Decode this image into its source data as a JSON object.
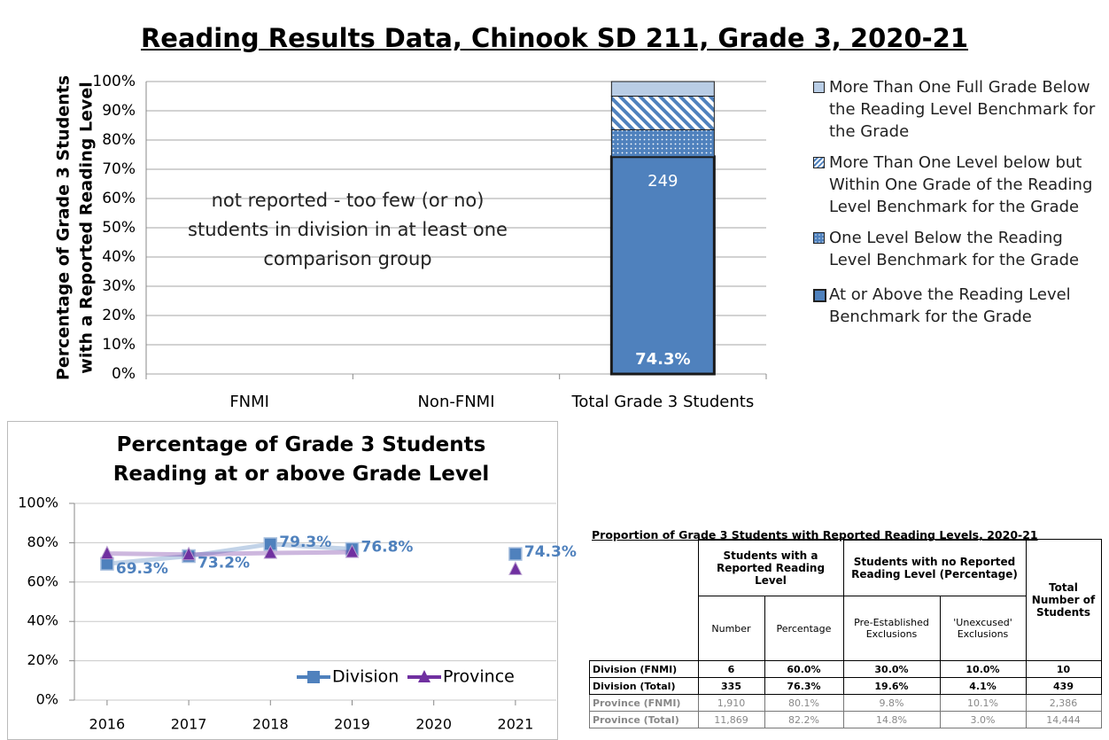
{
  "chart_data": [
    {
      "type": "stacked_bar",
      "title": "Reading Results Data, Chinook SD 211, Grade 3, 2020-21",
      "ylabel": [
        "Percentage of Grade 3 Students",
        "with a Reported Reading Level"
      ],
      "categories": [
        "FNMI",
        "Non-FNMI",
        "Total Grade 3 Students"
      ],
      "series": [
        {
          "name": "At or Above the Reading Level Benchmark for the Grade",
          "color": "#4f81bd",
          "fill_style": "solid",
          "values": [
            null,
            null,
            74.3
          ],
          "value_labels": [
            null,
            null,
            "74.3%"
          ]
        },
        {
          "name": "One Level Below the Reading Level Benchmark for the Grade",
          "color": "#4f81bd",
          "fill_style": "dots",
          "values": [
            null,
            null,
            9.2
          ]
        },
        {
          "name": "More Than One Level below but Within One Grade of the Reading Level Benchmark for the Grade",
          "color": "#4f81bd",
          "fill_style": "diagonal",
          "values": [
            null,
            null,
            11.5
          ]
        },
        {
          "name": "More Than One Full Grade Below the Reading Level Benchmark for the Grade",
          "color": "#b9cde5",
          "fill_style": "solid",
          "values": [
            null,
            null,
            5.0
          ]
        }
      ],
      "count_label": "249",
      "annotation": "not reported - too few (or no) students in division in at least one comparison group",
      "ylim": [
        0,
        100
      ],
      "yticks": [
        {
          "value": 0,
          "label": "0%"
        },
        {
          "value": 10,
          "label": "10%"
        },
        {
          "value": 20,
          "label": "20%"
        },
        {
          "value": 30,
          "label": "30%"
        },
        {
          "value": 40,
          "label": "40%"
        },
        {
          "value": 50,
          "label": "50%"
        },
        {
          "value": 60,
          "label": "60%"
        },
        {
          "value": 70,
          "label": "70%"
        },
        {
          "value": 80,
          "label": "80%"
        },
        {
          "value": 90,
          "label": "90%"
        },
        {
          "value": 100,
          "label": "100%"
        }
      ],
      "grid": true
    },
    {
      "type": "line",
      "title": "Percentage of Grade 3 Students Reading at or above Grade Level",
      "x": [
        2016,
        2017,
        2018,
        2019,
        2020,
        2021
      ],
      "xticks": [
        2016,
        2017,
        2018,
        2019,
        2020,
        2021
      ],
      "xlim": [
        2015.6,
        2021.5
      ],
      "series": [
        {
          "name": "Division",
          "color": "#4f81bd",
          "marker": "square",
          "values": [
            69.3,
            73.2,
            79.3,
            76.8,
            null,
            74.3
          ],
          "value_labels": [
            "69.3%",
            "73.2%",
            "79.3%",
            "76.8%",
            null,
            "74.3%"
          ]
        },
        {
          "name": "Province",
          "color": "#7030a0",
          "marker": "triangle",
          "values": [
            74.5,
            74.0,
            74.8,
            75.2,
            null,
            66.5
          ]
        }
      ],
      "ylim": [
        0,
        100
      ],
      "yticks": [
        {
          "value": 0,
          "label": "0%"
        },
        {
          "value": 20,
          "label": "20%"
        },
        {
          "value": 40,
          "label": "40%"
        },
        {
          "value": 60,
          "label": "60%"
        },
        {
          "value": 80,
          "label": "80%"
        },
        {
          "value": 100,
          "label": "100%"
        }
      ],
      "grid": true
    }
  ],
  "table": {
    "title": "Proportion of Grade 3 Students with Reported Reading Levels, 2020-21",
    "group_headers": [
      "Students with a Reported Reading Level",
      "Students with no Reported Reading Level (Percentage)",
      "Total Number of Students"
    ],
    "sub_headers": [
      "Number",
      "Percentage",
      "Pre-Established Exclusions",
      "'Unexcused' Exclusions"
    ],
    "rows": [
      [
        "Division (FNMI)",
        "6",
        "60.0%",
        "30.0%",
        "10.0%",
        "10"
      ],
      [
        "Division (Total)",
        "335",
        "76.3%",
        "19.6%",
        "4.1%",
        "439"
      ],
      [
        "Province (FNMI)",
        "1,910",
        "80.1%",
        "9.8%",
        "10.1%",
        "2,386"
      ],
      [
        "Province (Total)",
        "11,869",
        "82.2%",
        "14.8%",
        "3.0%",
        "14,444"
      ]
    ],
    "muted_rows": [
      2,
      3
    ]
  }
}
